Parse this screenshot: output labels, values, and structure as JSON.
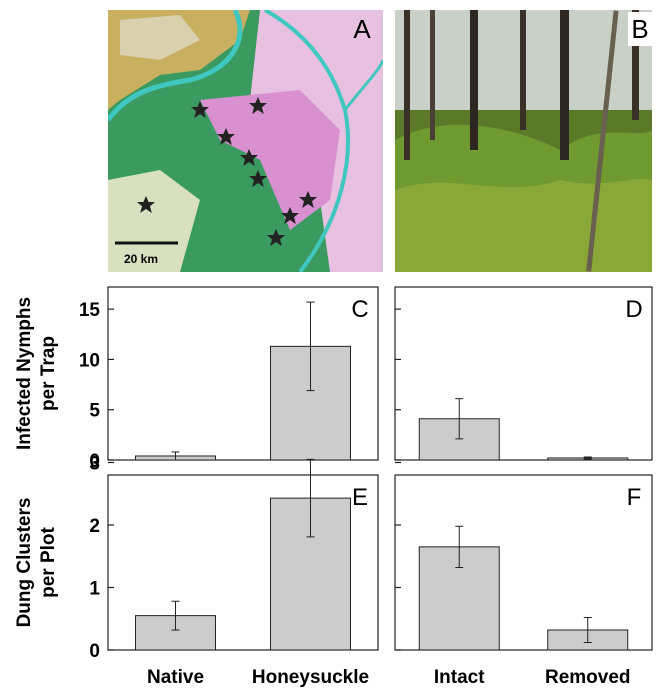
{
  "panels": {
    "map": {
      "label": "A",
      "scale": "20 km"
    },
    "photo": {
      "label": "B"
    }
  },
  "chart_data": [
    {
      "type": "bar",
      "panel": "C",
      "ylabel_lines": [
        "Infected Nymphs",
        "per Trap"
      ],
      "values": [
        0.4,
        11.3
      ],
      "errors": [
        0.4,
        4.4
      ],
      "color": "#cccccc",
      "ylim": [
        0,
        17.2
      ],
      "yticks": [
        0,
        5,
        10,
        15
      ],
      "tick_labels": true
    },
    {
      "type": "bar",
      "panel": "D",
      "values": [
        4.1,
        0.2
      ],
      "errors": [
        2.0,
        0.1
      ],
      "color": "#cccccc",
      "ylim": [
        0,
        17.2
      ],
      "yticks": [
        0,
        5,
        10,
        15
      ],
      "tick_labels": false
    },
    {
      "type": "bar",
      "panel": "E",
      "ylabel_lines": [
        "Dung Clusters",
        "per Plot"
      ],
      "categories": [
        "Native",
        "Honeysuckle"
      ],
      "values": [
        0.55,
        2.43
      ],
      "errors": [
        0.23,
        0.62
      ],
      "color": "#cccccc",
      "ylim": [
        0,
        2.8
      ],
      "yticks": [
        0,
        1,
        2,
        3
      ],
      "tick_labels": true
    },
    {
      "type": "bar",
      "panel": "F",
      "categories": [
        "Intact",
        "Removed"
      ],
      "values": [
        1.65,
        0.32
      ],
      "errors": [
        0.33,
        0.2
      ],
      "color": "#cccccc",
      "ylim": [
        0,
        2.8
      ],
      "yticks": [
        0,
        1,
        2,
        3
      ],
      "tick_labels": false
    }
  ]
}
